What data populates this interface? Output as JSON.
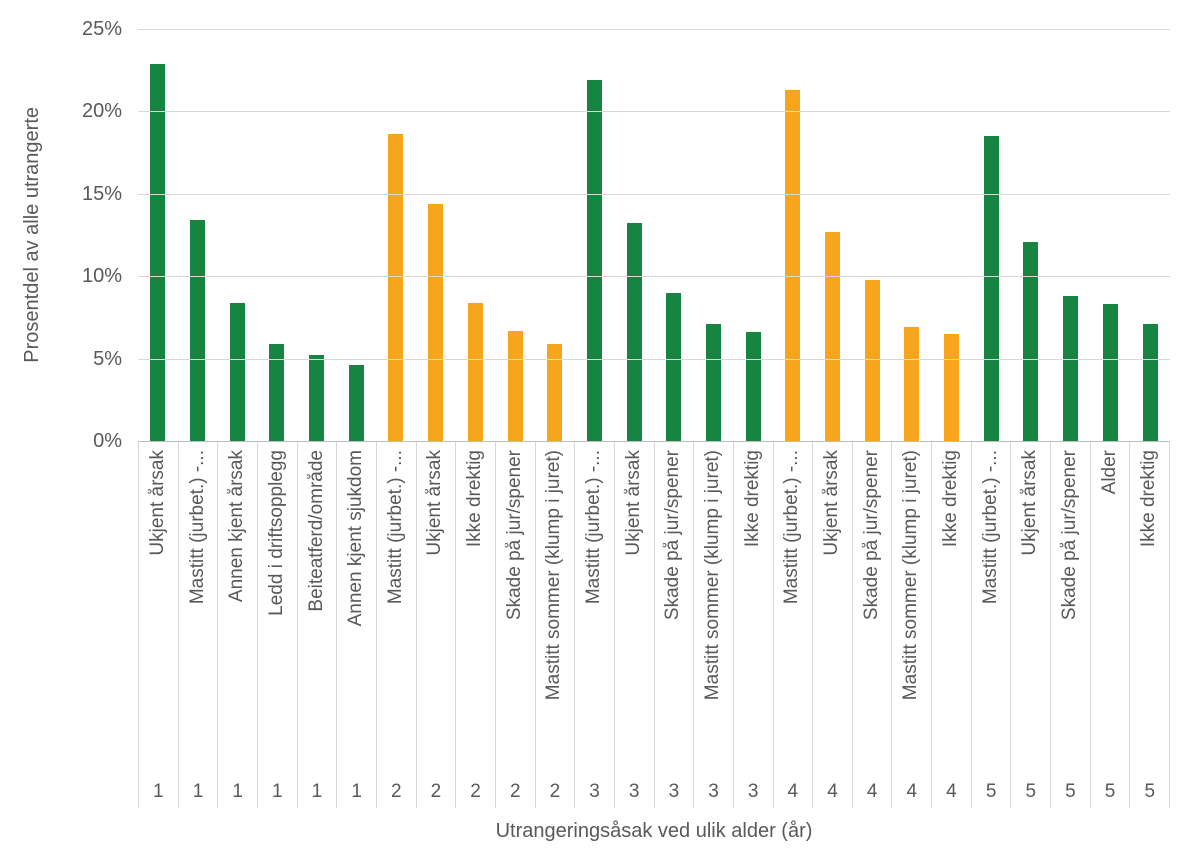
{
  "page": {
    "background": "#ffffff"
  },
  "chart_data": {
    "type": "bar",
    "title": "",
    "xlabel": "Utrangeringsåsak ved ulik alder (år)",
    "ylabel": "Prosentdel av alle utrangerte",
    "ylim": [
      0,
      25
    ],
    "grid": true,
    "legend": false,
    "colors": {
      "green": "#188442",
      "orange": "#f7a51c",
      "text": "#595959",
      "gridline": "#d9d9d9",
      "axisline": "#bfbfbf"
    },
    "yticks": [
      {
        "label": "25%",
        "value": 25
      },
      {
        "label": "20%",
        "value": 20
      },
      {
        "label": "15%",
        "value": 15
      },
      {
        "label": "10%",
        "value": 10
      },
      {
        "label": "5%",
        "value": 5
      },
      {
        "label": "0%",
        "value": 0
      }
    ],
    "points": [
      {
        "age": "1",
        "label": "Ukjent årsak",
        "value": 22.9,
        "series": "green"
      },
      {
        "age": "1",
        "label": "Mastitt (jurbet.) -...",
        "value": 13.4,
        "series": "green"
      },
      {
        "age": "1",
        "label": "Annen kjent årsak",
        "value": 8.4,
        "series": "green"
      },
      {
        "age": "1",
        "label": "Ledd i driftsopplegg",
        "value": 5.9,
        "series": "green"
      },
      {
        "age": "1",
        "label": "Beiteatferd/område",
        "value": 5.2,
        "series": "green"
      },
      {
        "age": "1",
        "label": "Annen kjent sjukdom",
        "value": 4.6,
        "series": "green"
      },
      {
        "age": "2",
        "label": "Mastitt (jurbet.) -...",
        "value": 18.6,
        "series": "orange"
      },
      {
        "age": "2",
        "label": "Ukjent årsak",
        "value": 14.4,
        "series": "orange"
      },
      {
        "age": "2",
        "label": "Ikke drektig",
        "value": 8.4,
        "series": "orange"
      },
      {
        "age": "2",
        "label": "Skade på jur/spener",
        "value": 6.7,
        "series": "orange"
      },
      {
        "age": "2",
        "label": "Mastitt sommer (klump i juret)",
        "value": 5.9,
        "series": "orange"
      },
      {
        "age": "3",
        "label": "Mastitt (jurbet.) -...",
        "value": 21.9,
        "series": "green"
      },
      {
        "age": "3",
        "label": "Ukjent årsak",
        "value": 13.2,
        "series": "green"
      },
      {
        "age": "3",
        "label": "Skade på jur/spener",
        "value": 9.0,
        "series": "green"
      },
      {
        "age": "3",
        "label": "Mastitt sommer (klump i juret)",
        "value": 7.1,
        "series": "green"
      },
      {
        "age": "3",
        "label": "Ikke drektig",
        "value": 6.6,
        "series": "green"
      },
      {
        "age": "4",
        "label": "Mastitt (jurbet.) -...",
        "value": 21.3,
        "series": "orange"
      },
      {
        "age": "4",
        "label": "Ukjent årsak",
        "value": 12.7,
        "series": "orange"
      },
      {
        "age": "4",
        "label": "Skade på jur/spener",
        "value": 9.8,
        "series": "orange"
      },
      {
        "age": "4",
        "label": "Mastitt sommer (klump i juret)",
        "value": 6.9,
        "series": "orange"
      },
      {
        "age": "4",
        "label": "Ikke drektig",
        "value": 6.5,
        "series": "orange"
      },
      {
        "age": "5",
        "label": "Mastitt (jurbet.) -...",
        "value": 18.5,
        "series": "green"
      },
      {
        "age": "5",
        "label": "Ukjent årsak",
        "value": 12.1,
        "series": "green"
      },
      {
        "age": "5",
        "label": "Skade på jur/spener",
        "value": 8.8,
        "series": "green"
      },
      {
        "age": "5",
        "label": "Alder",
        "value": 8.3,
        "series": "green"
      },
      {
        "age": "5",
        "label": "Ikke drektig",
        "value": 7.1,
        "series": "green"
      }
    ]
  }
}
